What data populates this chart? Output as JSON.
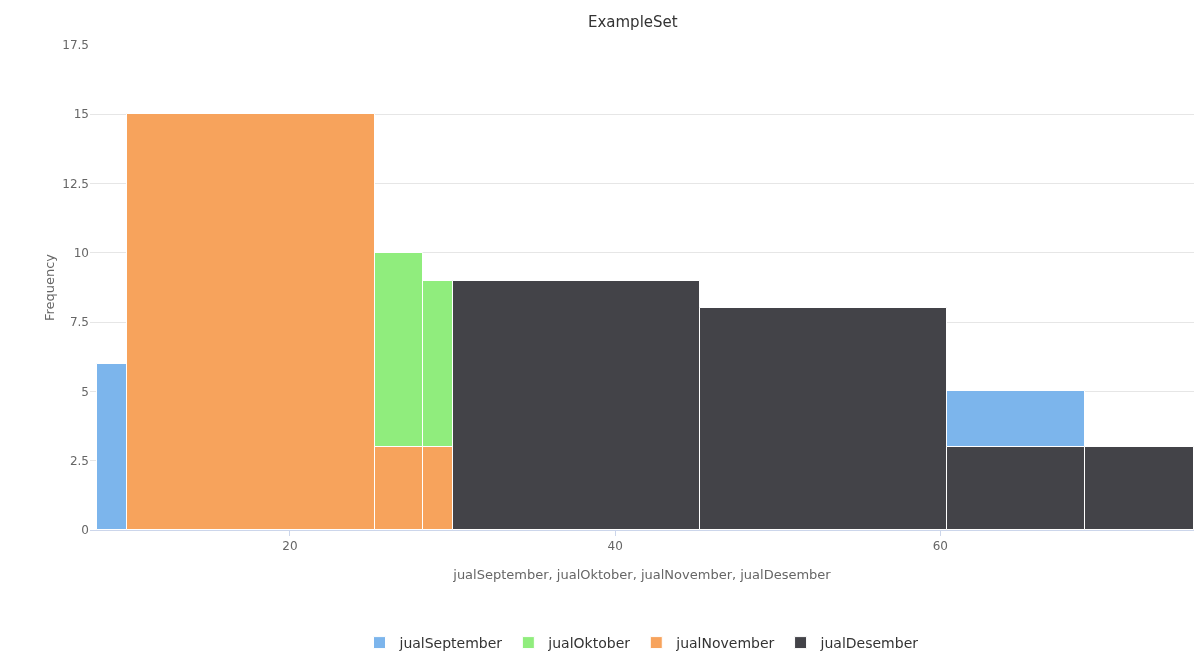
{
  "chart_data": {
    "type": "histogram",
    "title": "ExampleSet",
    "xlabel": "jualSeptember, jualOktober, jualNovember, jualDesember",
    "ylabel": "Frequency",
    "bins": [
      8.1,
      10,
      25.2,
      28.2,
      30,
      45.2,
      60.4,
      68.9,
      75.6
    ],
    "series": [
      {
        "name": "jualSeptember",
        "color": "#7cb5ec",
        "values": [
          6,
          null,
          null,
          null,
          null,
          null,
          5,
          null
        ]
      },
      {
        "name": "jualOktober",
        "color": "#90ed7d",
        "values": [
          null,
          null,
          10,
          9,
          null,
          null,
          null,
          null
        ]
      },
      {
        "name": "jualNovember",
        "color": "#f7a35c",
        "values": [
          null,
          15,
          3,
          3,
          null,
          null,
          null,
          null
        ]
      },
      {
        "name": "jualDesember",
        "color": "#434348",
        "values": [
          null,
          null,
          null,
          null,
          9,
          8,
          3,
          3
        ]
      }
    ],
    "xlim": [
      7.7,
      75.6
    ],
    "xticks": [
      20,
      40,
      60
    ],
    "ylim": [
      0,
      17.5
    ],
    "yticks": [
      0,
      2.5,
      5,
      7.5,
      10,
      12.5,
      15,
      17.5
    ],
    "grid": "y",
    "legend": "bottom"
  }
}
